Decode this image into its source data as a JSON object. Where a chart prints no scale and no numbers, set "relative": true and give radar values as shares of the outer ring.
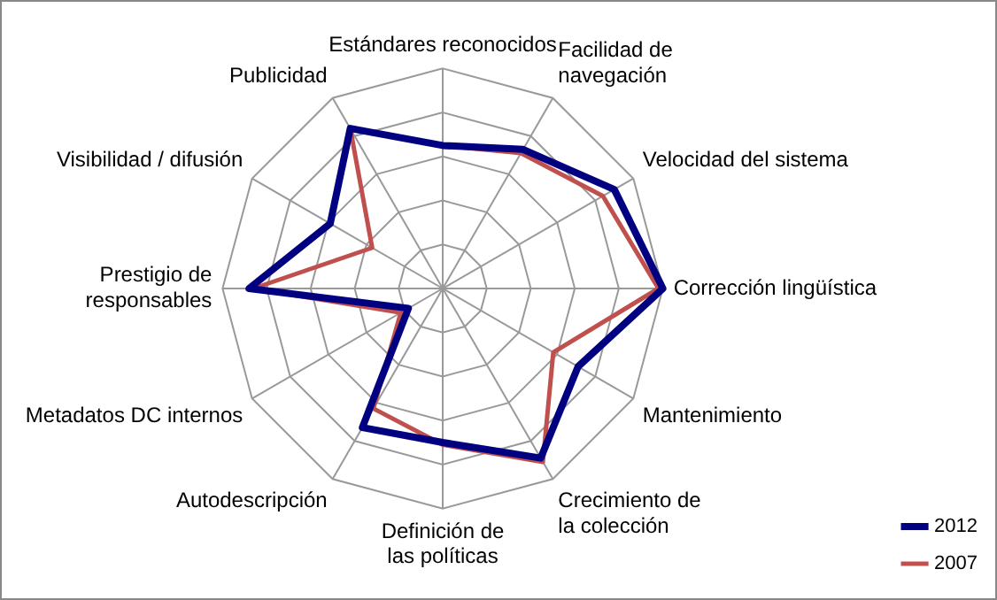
{
  "chart_data": {
    "type": "radar",
    "relative": true,
    "categories": [
      "Estándares reconocidos",
      "Facilidad de navegación",
      "Velocidad del sistema",
      "Corrección lingüística",
      "Mantenimiento",
      "Crecimiento de la colección",
      "Definición de las políticas",
      "Autodescripción",
      "Metadatos DC internos",
      "Prestigio de responsables",
      "Visibilidad / difusión",
      "Publicidad"
    ],
    "series": [
      {
        "name": "2012",
        "color": "#000080",
        "values": [
          0.65,
          0.73,
          0.9,
          1.0,
          0.71,
          0.89,
          0.7,
          0.73,
          0.18,
          0.88,
          0.59,
          0.84
        ]
      },
      {
        "name": "2007",
        "color": "#c0504d",
        "values": [
          0.65,
          0.71,
          0.84,
          0.98,
          0.58,
          0.91,
          0.71,
          0.63,
          0.22,
          0.86,
          0.37,
          0.84
        ]
      }
    ],
    "grid": true,
    "legend": "bottom right",
    "marker": "none"
  }
}
